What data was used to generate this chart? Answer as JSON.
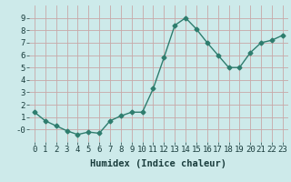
{
  "x": [
    0,
    1,
    2,
    3,
    4,
    5,
    6,
    7,
    8,
    9,
    10,
    11,
    12,
    13,
    14,
    15,
    16,
    17,
    18,
    19,
    20,
    21,
    22,
    23
  ],
  "y": [
    1.4,
    0.7,
    0.3,
    -0.1,
    -0.4,
    -0.2,
    -0.3,
    0.7,
    1.1,
    1.4,
    1.4,
    3.3,
    5.8,
    8.4,
    9.0,
    8.1,
    7.0,
    6.0,
    5.0,
    5.0,
    6.2,
    7.0,
    7.2,
    7.6
  ],
  "line_color": "#2e7d6e",
  "marker": "D",
  "marker_size": 2.5,
  "bg_color": "#cdeaea",
  "grid_color": "#b8d8d8",
  "xlabel": "Humidex (Indice chaleur)",
  "ylim": [
    -1,
    10
  ],
  "xlim": [
    -0.5,
    23.5
  ],
  "yticks": [
    0,
    1,
    2,
    3,
    4,
    5,
    6,
    7,
    8,
    9
  ],
  "ytick_labels": [
    "-0",
    "1",
    "2",
    "3",
    "4",
    "5",
    "6",
    "7",
    "8",
    "9"
  ],
  "xticks": [
    0,
    1,
    2,
    3,
    4,
    5,
    6,
    7,
    8,
    9,
    10,
    11,
    12,
    13,
    14,
    15,
    16,
    17,
    18,
    19,
    20,
    21,
    22,
    23
  ],
  "xlabel_fontsize": 7.5,
  "tick_fontsize": 6.5,
  "line_width": 1.0
}
